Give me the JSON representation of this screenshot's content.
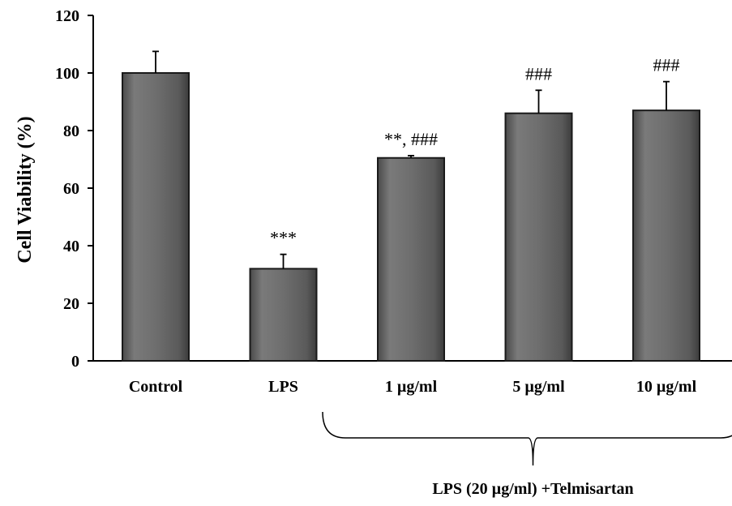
{
  "chart_data": {
    "type": "bar",
    "title": "",
    "xlabel": "",
    "ylabel": "Cell  Viability  (%)",
    "ylim": [
      0,
      120
    ],
    "yticks": [
      0,
      20,
      40,
      60,
      80,
      100,
      120
    ],
    "grid": false,
    "categories": [
      "Control",
      "LPS",
      "1 µg/ml",
      "5 µg/ml",
      "10 µg/ml"
    ],
    "values": [
      100,
      32,
      70.5,
      86,
      87
    ],
    "errors": [
      7.5,
      5,
      0.8,
      8,
      10
    ],
    "annotations": [
      "",
      "***",
      "**, ###",
      "###",
      "###"
    ],
    "group_label": "LPS (20 µg/ml) +Telmisartan",
    "group_categories": [
      2,
      3,
      4
    ],
    "bar_color": "#6b6b6b"
  }
}
